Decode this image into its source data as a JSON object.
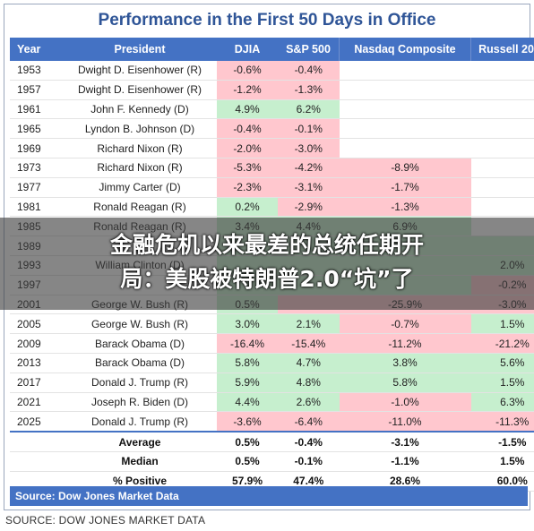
{
  "title": "Performance in the First 50 Days in Office",
  "headers": [
    "Year",
    "President",
    "DJIA",
    "S&P 500",
    "Nasdaq Composite",
    "Russell 2000"
  ],
  "rows": [
    {
      "year": "1953",
      "president": "Dwight D. Eisenhower (R)",
      "djia": "-0.6%",
      "sp": "-0.4%",
      "nasdaq": "",
      "russell": ""
    },
    {
      "year": "1957",
      "president": "Dwight D. Eisenhower (R)",
      "djia": "-1.2%",
      "sp": "-1.3%",
      "nasdaq": "",
      "russell": ""
    },
    {
      "year": "1961",
      "president": "John F. Kennedy (D)",
      "djia": "4.9%",
      "sp": "6.2%",
      "nasdaq": "",
      "russell": ""
    },
    {
      "year": "1965",
      "president": "Lyndon B. Johnson (D)",
      "djia": "-0.4%",
      "sp": "-0.1%",
      "nasdaq": "",
      "russell": ""
    },
    {
      "year": "1969",
      "president": "Richard Nixon (R)",
      "djia": "-2.0%",
      "sp": "-3.0%",
      "nasdaq": "",
      "russell": ""
    },
    {
      "year": "1973",
      "president": "Richard Nixon (R)",
      "djia": "-5.3%",
      "sp": "-4.2%",
      "nasdaq": "-8.9%",
      "russell": ""
    },
    {
      "year": "1977",
      "president": "Jimmy Carter (D)",
      "djia": "-2.3%",
      "sp": "-3.1%",
      "nasdaq": "-1.7%",
      "russell": ""
    },
    {
      "year": "1981",
      "president": "Ronald Reagan (R)",
      "djia": "0.2%",
      "sp": "-2.9%",
      "nasdaq": "-1.3%",
      "russell": ""
    },
    {
      "year": "1985",
      "president": "Ronald Reagan (R)",
      "djia": "3.4%",
      "sp": "4.4%",
      "nasdaq": "6.9%",
      "russell": ""
    },
    {
      "year": "1989",
      "president": "",
      "djia": "",
      "sp": "",
      "nasdaq": "",
      "russell": ""
    },
    {
      "year": "1993",
      "president": "William Clinton (D)",
      "djia": "",
      "sp": "",
      "nasdaq": "",
      "russell": "2.0%"
    },
    {
      "year": "1997",
      "president": "",
      "djia": "",
      "sp": "",
      "nasdaq": "",
      "russell": "-0.2%"
    },
    {
      "year": "2001",
      "president": "George W. Bush (R)",
      "djia": "0.5%",
      "sp": "",
      "nasdaq": "-25.9%",
      "russell": "-3.0%"
    },
    {
      "year": "2005",
      "president": "George W. Bush (R)",
      "djia": "3.0%",
      "sp": "2.1%",
      "nasdaq": "-0.7%",
      "russell": "1.5%"
    },
    {
      "year": "2009",
      "president": "Barack Obama (D)",
      "djia": "-16.4%",
      "sp": "-15.4%",
      "nasdaq": "-11.2%",
      "russell": "-21.2%"
    },
    {
      "year": "2013",
      "president": "Barack Obama (D)",
      "djia": "5.8%",
      "sp": "4.7%",
      "nasdaq": "3.8%",
      "russell": "5.6%"
    },
    {
      "year": "2017",
      "president": "Donald J. Trump (R)",
      "djia": "5.9%",
      "sp": "4.8%",
      "nasdaq": "5.8%",
      "russell": "1.5%"
    },
    {
      "year": "2021",
      "president": "Joseph R. Biden (D)",
      "djia": "4.4%",
      "sp": "2.6%",
      "nasdaq": "-1.0%",
      "russell": "6.3%"
    },
    {
      "year": "2025",
      "president": "Donald J. Trump (R)",
      "djia": "-3.6%",
      "sp": "-6.4%",
      "nasdaq": "-11.0%",
      "russell": "-11.3%"
    }
  ],
  "row_colors": [
    [
      "neg",
      "neg",
      "blank",
      "blank"
    ],
    [
      "neg",
      "neg",
      "blank",
      "blank"
    ],
    [
      "pos",
      "pos",
      "blank",
      "blank"
    ],
    [
      "neg",
      "neg",
      "blank",
      "blank"
    ],
    [
      "neg",
      "neg",
      "blank",
      "blank"
    ],
    [
      "neg",
      "neg",
      "neg",
      "blank"
    ],
    [
      "neg",
      "neg",
      "neg",
      "blank"
    ],
    [
      "pos",
      "neg",
      "neg",
      "blank"
    ],
    [
      "pos",
      "pos",
      "pos",
      "blank"
    ],
    [
      "pos",
      "pos",
      "pos",
      "pos"
    ],
    [
      "pos",
      "pos",
      "pos",
      "pos"
    ],
    [
      "pos",
      "pos",
      "pos",
      "neg"
    ],
    [
      "pos",
      "neg",
      "neg",
      "neg"
    ],
    [
      "pos",
      "pos",
      "neg",
      "pos"
    ],
    [
      "neg",
      "neg",
      "neg",
      "neg"
    ],
    [
      "pos",
      "pos",
      "pos",
      "pos"
    ],
    [
      "pos",
      "pos",
      "pos",
      "pos"
    ],
    [
      "pos",
      "pos",
      "neg",
      "pos"
    ],
    [
      "neg",
      "neg",
      "neg",
      "neg"
    ]
  ],
  "summary": [
    {
      "label": "Average",
      "djia": "0.5%",
      "sp": "-0.4%",
      "nasdaq": "-3.1%",
      "russell": "-1.5%"
    },
    {
      "label": "Median",
      "djia": "0.5%",
      "sp": "-0.1%",
      "nasdaq": "-1.1%",
      "russell": "1.5%"
    },
    {
      "label": "% Positive",
      "djia": "57.9%",
      "sp": "47.4%",
      "nasdaq": "28.6%",
      "russell": "60.0%"
    }
  ],
  "source_bar": "Source: Dow Jones Market Data",
  "caption": "SOURCE: DOW JONES MARKET DATA",
  "headline_line1": "金融危机以来最差的总统任期开",
  "headline_line2": "局：美股被特朗普2.0“坑”了",
  "colors": {
    "header_bg": "#4472c4",
    "title": "#2f5597",
    "positive": "#c6efce",
    "negative": "#ffc7ce"
  }
}
